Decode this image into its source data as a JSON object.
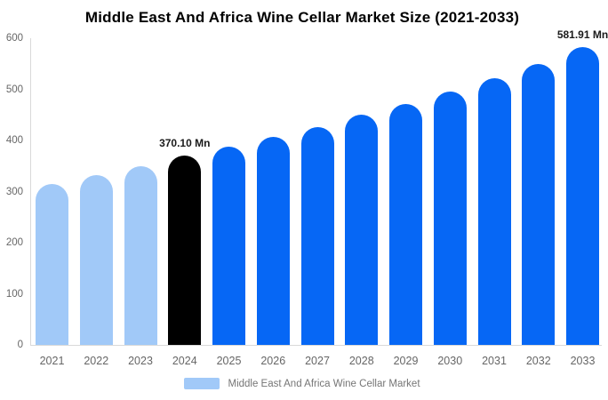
{
  "title": "Middle East And Africa Wine Cellar Market Size (2021-2033)",
  "chart_data": {
    "type": "bar",
    "title": "Middle East And Africa Wine Cellar Market Size (2021-2033)",
    "categories": [
      "2021",
      "2022",
      "2023",
      "2024",
      "2025",
      "2026",
      "2027",
      "2028",
      "2029",
      "2030",
      "2031",
      "2032",
      "2033"
    ],
    "values": [
      315,
      333,
      350,
      370.1,
      388,
      407,
      426,
      450,
      472,
      496,
      521,
      550,
      581.91
    ],
    "unit": "Mn",
    "xlabel": "",
    "ylabel": "",
    "ylim": [
      0,
      600
    ],
    "yticks": [
      0,
      100,
      200,
      300,
      400,
      500,
      600
    ],
    "grid": false,
    "legend_position": "bottom",
    "series_name": "Middle East And Africa Wine Cellar Market",
    "data_labels": [
      {
        "category": "2024",
        "text": "370.10 Mn"
      },
      {
        "category": "2033",
        "text": "581.91 Mn"
      }
    ],
    "bar_colors": [
      "#a1c9f8",
      "#a1c9f8",
      "#a1c9f8",
      "#000000",
      "#0667f5",
      "#0667f5",
      "#0667f5",
      "#0667f5",
      "#0667f5",
      "#0667f5",
      "#0667f5",
      "#0667f5",
      "#0667f5"
    ]
  },
  "legend": {
    "label": "Middle East And Africa Wine Cellar Market",
    "swatch_color": "#a1c9f8"
  },
  "colors": {
    "page_background": "#ffffff",
    "historical_bar": "#a1c9f8",
    "highlight_bar": "#000000",
    "forecast_bar": "#0667f5",
    "axis_line": "#d9d9d9",
    "axis_label": "#666666",
    "legend_text": "#757575",
    "annotation_text": "#1a1a1a",
    "title_text": "#000000"
  }
}
